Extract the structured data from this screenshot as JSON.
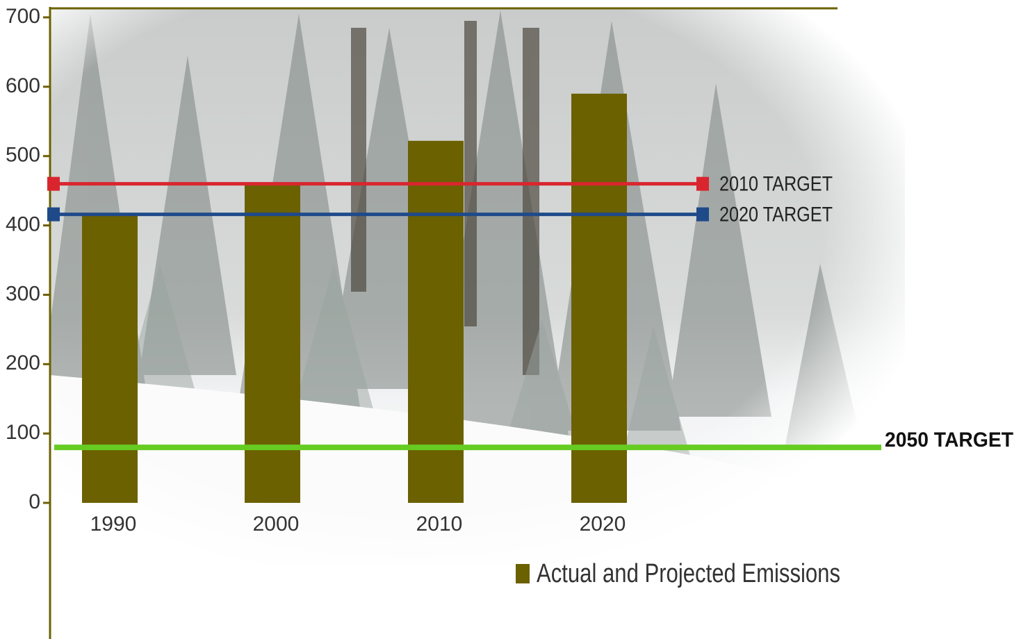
{
  "chart_data": {
    "type": "bar",
    "categories": [
      "1990",
      "2000",
      "2010",
      "2020"
    ],
    "series": [
      {
        "name": "Actual and Projected Emissions",
        "color": "#6b6100",
        "values": [
          415,
          460,
          522,
          590
        ]
      }
    ],
    "targets": [
      {
        "label": "2010 TARGET",
        "value": 460,
        "color": "#d9262e"
      },
      {
        "label": "2020 TARGET",
        "value": 416,
        "color": "#1f4a8a"
      },
      {
        "label": "2050 TARGET",
        "value": 80,
        "color": "#66cc22"
      }
    ],
    "ylim": [
      0,
      700
    ],
    "yticks": [
      0,
      100,
      200,
      300,
      400,
      500,
      600,
      700
    ]
  }
}
